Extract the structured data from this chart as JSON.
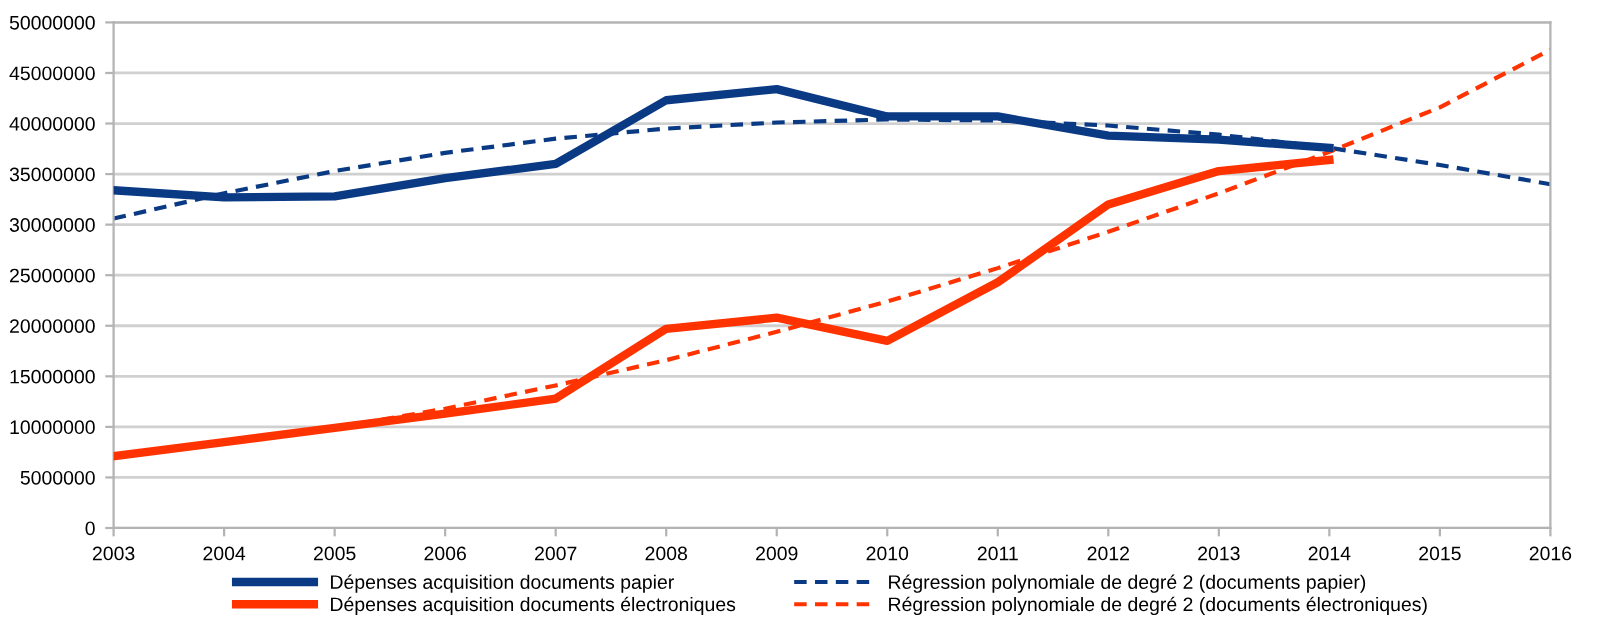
{
  "chart_data": {
    "type": "line",
    "x": [
      2003,
      2004,
      2005,
      2006,
      2007,
      2008,
      2009,
      2010,
      2011,
      2012,
      2013,
      2014
    ],
    "series": [
      {
        "name": "Dépenses acquisition documents papier",
        "color": "#0a3a84",
        "line_style": "solid",
        "values": [
          33400000,
          32700000,
          32800000,
          34600000,
          36000000,
          42300000,
          43400000,
          40700000,
          40700000,
          38800000,
          38400000,
          37600000
        ]
      },
      {
        "name": "Dépenses acquisition documents électroniques",
        "color": "#ff3300",
        "line_style": "solid",
        "values": [
          7100000,
          8500000,
          9900000,
          11300000,
          12800000,
          19700000,
          20800000,
          18500000,
          24300000,
          32000000,
          35300000,
          36400000
        ]
      },
      {
        "name": "Régression polynomiale de degré 2 (documents papier)",
        "color": "#0a3a84",
        "line_style": "dashed",
        "x": [
          2003,
          2004,
          2005,
          2006,
          2007,
          2008,
          2009,
          2010,
          2011,
          2012,
          2013,
          2014,
          2015,
          2016
        ],
        "values": [
          30600000,
          33100000,
          35300000,
          37100000,
          38500000,
          39500000,
          40100000,
          40400000,
          40300000,
          39800000,
          38900000,
          37600000,
          35900000,
          34000000
        ]
      },
      {
        "name": "Régression polynomiale de degré 2 (documents électroniques)",
        "color": "#ff3300",
        "line_style": "dashed",
        "x": [
          2003,
          2004,
          2005,
          2006,
          2007,
          2008,
          2009,
          2010,
          2011,
          2012,
          2013,
          2014,
          2015,
          2016
        ],
        "values": [
          7100000,
          8400000,
          9900000,
          11800000,
          14100000,
          16600000,
          19400000,
          22400000,
          25700000,
          29300000,
          33100000,
          37200000,
          41600000,
          47300000
        ]
      }
    ],
    "xlim": [
      2003,
      2016
    ],
    "xticks": [
      2003,
      2004,
      2005,
      2006,
      2007,
      2008,
      2009,
      2010,
      2011,
      2012,
      2013,
      2014,
      2015,
      2016
    ],
    "ylim": [
      0,
      50000000
    ],
    "yticks": [
      0,
      5000000,
      10000000,
      15000000,
      20000000,
      25000000,
      30000000,
      35000000,
      40000000,
      45000000,
      50000000
    ],
    "grid": "y",
    "legend": "bottom",
    "marker": "none"
  }
}
